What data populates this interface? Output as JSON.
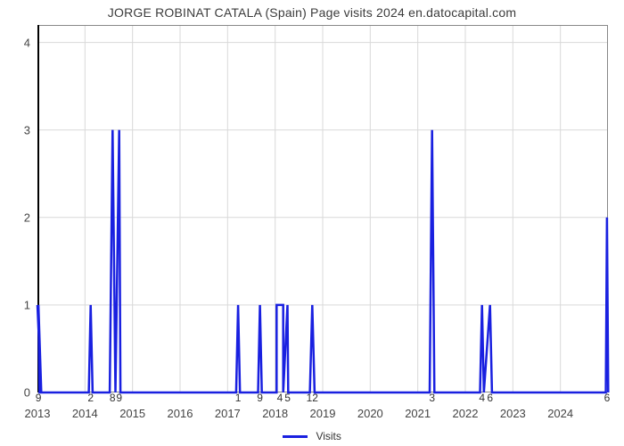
{
  "title": "JORGE ROBINAT CATALA (Spain) Page visits 2024 en.datocapital.com",
  "legend": {
    "label": "Visits",
    "color": "#1920e0"
  },
  "chart": {
    "type": "line",
    "background_color": "#ffffff",
    "grid_color": "#d9d9d9",
    "axis_color": "#888888",
    "yaxis_accent_color": "#000000",
    "title_fontsize": 14,
    "tick_fontsize": 13,
    "label_fontsize": 12,
    "line_width": 2.5,
    "ylim": [
      0,
      4.2
    ],
    "yticks": [
      0,
      1,
      2,
      3,
      4
    ],
    "xlim": [
      2013,
      2025
    ],
    "xticks": [
      2013,
      2014,
      2015,
      2016,
      2017,
      2018,
      2019,
      2020,
      2021,
      2022,
      2023,
      2024
    ],
    "peaks": [
      {
        "x": 2013.02,
        "v": 9,
        "w": 0.05,
        "label": "9",
        "label_side": "below"
      },
      {
        "x": 2014.12,
        "v": 2,
        "w": 0.08,
        "label": "2",
        "label_side": "below",
        "h": 1
      },
      {
        "x": 2014.58,
        "v": 8,
        "w": 0.12,
        "label": "8",
        "label_side": "below",
        "h": 3,
        "join_right": true
      },
      {
        "x": 2014.72,
        "v": 9,
        "w": 0.05,
        "label": "9",
        "label_side": "below",
        "h": 3
      },
      {
        "x": 2017.22,
        "v": 1,
        "w": 0.08,
        "label": "1",
        "label_side": "below",
        "h": 1
      },
      {
        "x": 2017.68,
        "v": 9,
        "w": 0.08,
        "label": "9",
        "label_side": "below",
        "h": 1
      },
      {
        "x": 2018.1,
        "v": 4,
        "w": 0.14,
        "label": "4",
        "label_side": "below",
        "h": 1,
        "plateau": true,
        "join_right": true
      },
      {
        "x": 2018.26,
        "v": 5,
        "w": 0.03,
        "label": "5",
        "label_side": "below",
        "h": 1
      },
      {
        "x": 2018.78,
        "v": 12,
        "w": 0.1,
        "label": "12",
        "label_side": "below",
        "h": 1
      },
      {
        "x": 2021.3,
        "v": 3,
        "w": 0.1,
        "label": "3",
        "label_side": "below",
        "h": 3
      },
      {
        "x": 2022.35,
        "v": 4,
        "w": 0.08,
        "label": "4",
        "label_side": "below",
        "h": 1,
        "join_right": true
      },
      {
        "x": 2022.52,
        "v": 6,
        "w": 0.08,
        "label": "6",
        "label_side": "below",
        "h": 1
      },
      {
        "x": 2024.98,
        "v": 6,
        "w": 0.05,
        "label": "6",
        "label_side": "below",
        "h": 2
      }
    ]
  }
}
